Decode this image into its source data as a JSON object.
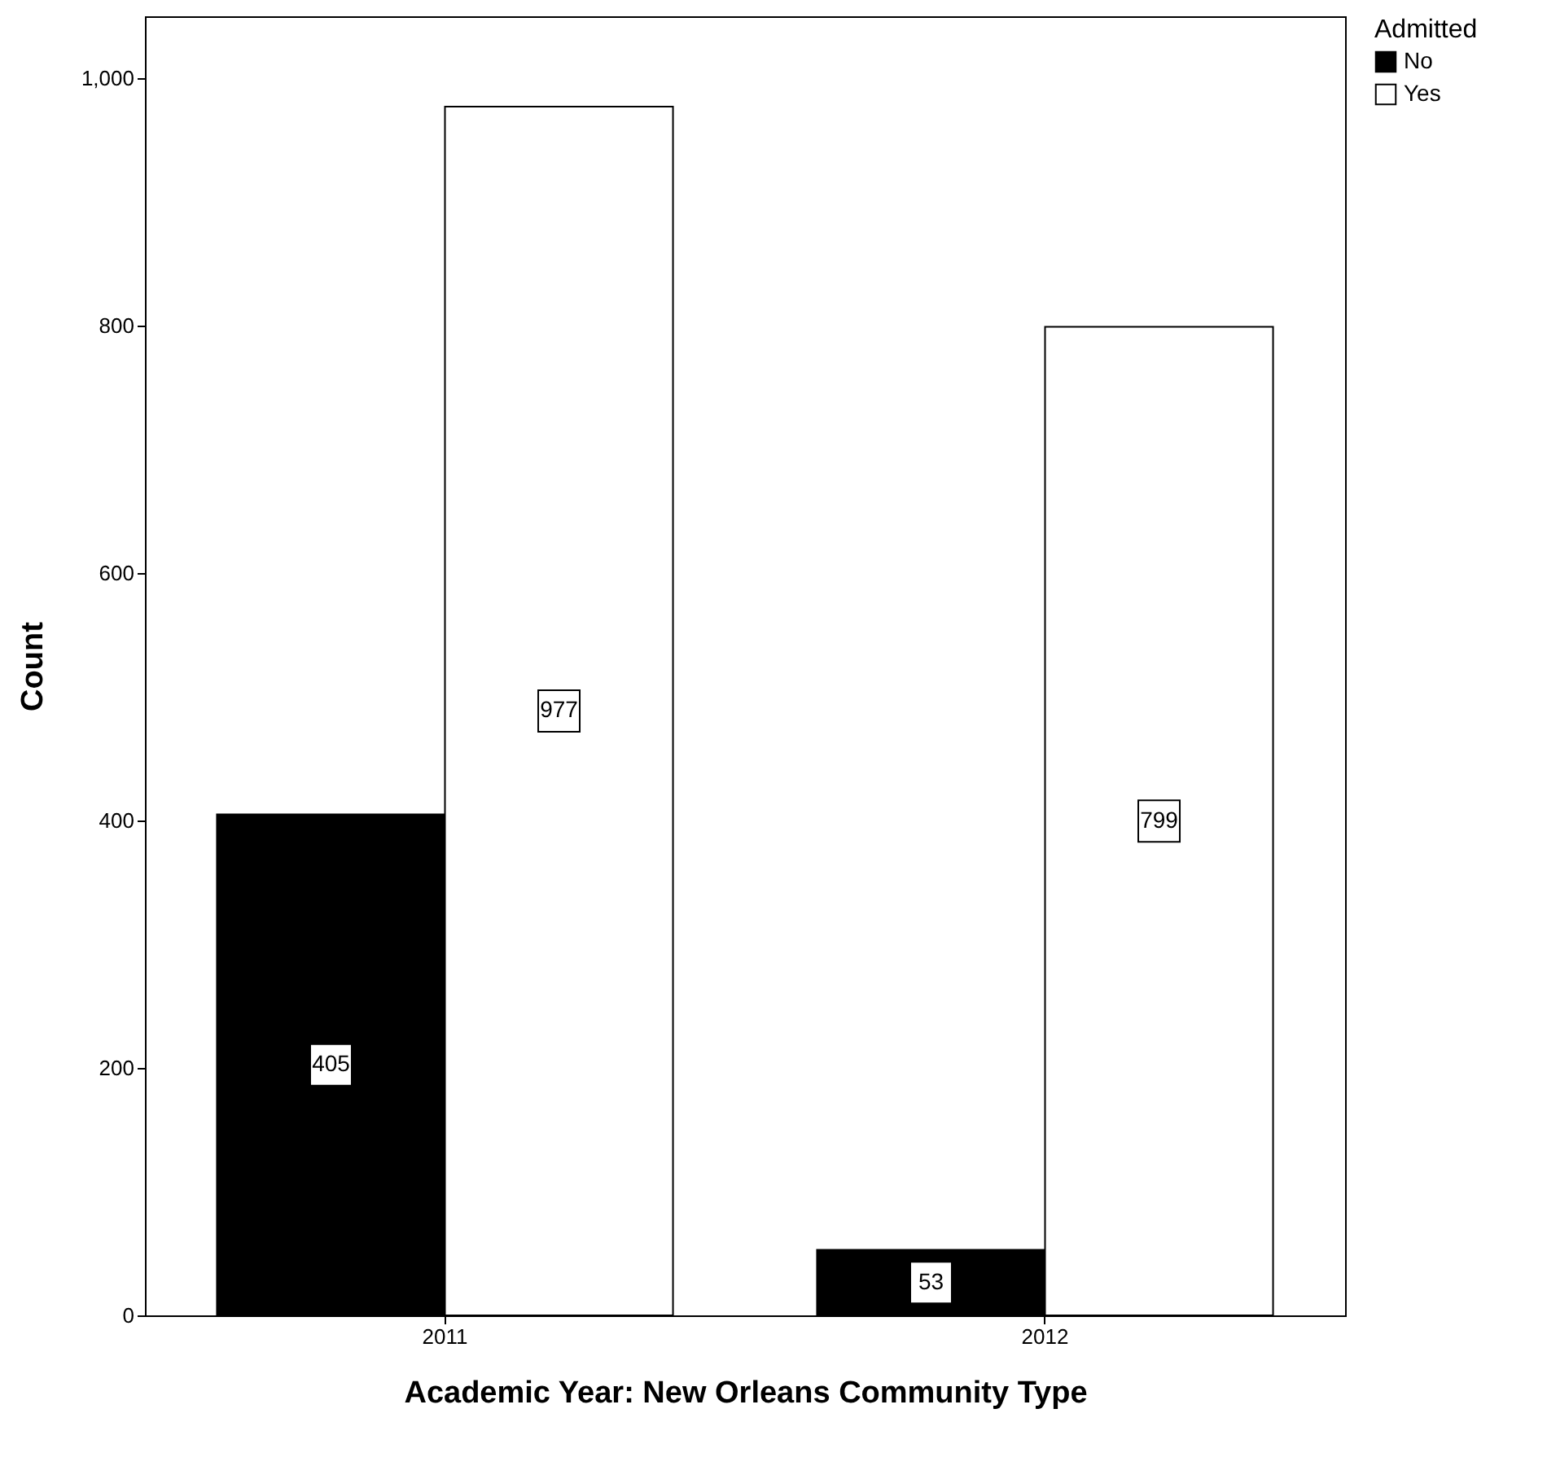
{
  "chart_data": {
    "type": "bar",
    "xlabel": "Academic Year: New Orleans Community Type",
    "ylabel": "Count",
    "legend_title": "Admitted",
    "categories": [
      "2011",
      "2012"
    ],
    "series": [
      {
        "name": "No",
        "color": "#000000",
        "values": [
          405,
          53
        ]
      },
      {
        "name": "Yes",
        "color": "#ffffff",
        "values": [
          977,
          799
        ]
      }
    ],
    "ylim": [
      0,
      1050
    ],
    "yticks": [
      0,
      200,
      400,
      600,
      800,
      {
        "value": 1000,
        "label": "1,000"
      }
    ],
    "data_labels": true,
    "legend": "top right",
    "grid": false
  }
}
